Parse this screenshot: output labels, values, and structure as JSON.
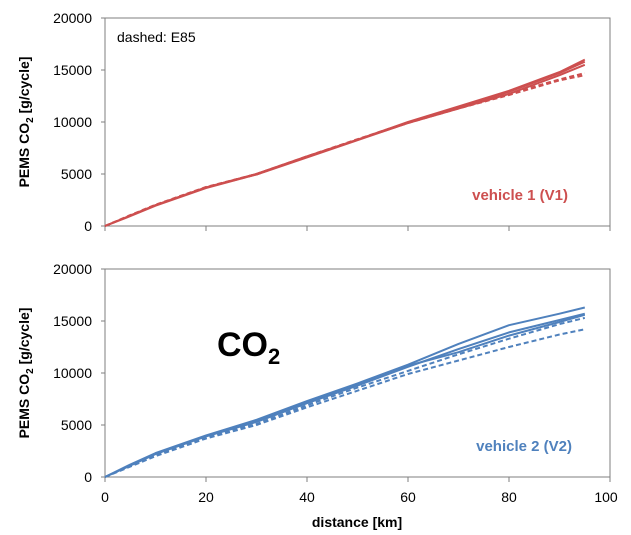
{
  "chart_data": [
    {
      "type": "line",
      "ylabel_main": "PEMS CO",
      "ylabel_sub": "2",
      "ylabel_rest": " [g/cycle]",
      "annotation": "dashed: E85",
      "vehicle_label": "vehicle 1 (V1)",
      "color": "#cd4f4f",
      "ylim": [
        0,
        20000
      ],
      "yticks": [
        "0",
        "5000",
        "10000",
        "15000",
        "20000"
      ],
      "xlim": [
        0,
        100
      ],
      "series": [
        {
          "style": "solid",
          "x": [
            0,
            5,
            10,
            20,
            30,
            40,
            50,
            60,
            70,
            80,
            90,
            95
          ],
          "y": [
            0,
            1000,
            2000,
            3700,
            5000,
            6700,
            8300,
            10000,
            11500,
            13000,
            14800,
            16000
          ]
        },
        {
          "style": "solid",
          "x": [
            0,
            5,
            10,
            20,
            30,
            40,
            50,
            60,
            70,
            80,
            90,
            95
          ],
          "y": [
            0,
            950,
            1950,
            3650,
            4950,
            6600,
            8250,
            9900,
            11300,
            12700,
            14500,
            15500
          ]
        },
        {
          "style": "solid",
          "x": [
            0,
            5,
            10,
            20,
            30,
            40,
            50,
            60,
            70,
            80,
            90,
            95
          ],
          "y": [
            0,
            1000,
            2000,
            3700,
            5000,
            6650,
            8300,
            9950,
            11400,
            12900,
            14700,
            15800
          ]
        },
        {
          "style": "dashed",
          "x": [
            0,
            5,
            10,
            20,
            30,
            40,
            50,
            60,
            70,
            80,
            90,
            95
          ],
          "y": [
            0,
            1050,
            2050,
            3750,
            5000,
            6700,
            8350,
            9950,
            11400,
            12700,
            14100,
            14700
          ]
        },
        {
          "style": "dashed",
          "x": [
            0,
            5,
            10,
            20,
            30,
            40,
            50,
            60,
            70,
            80,
            90,
            95
          ],
          "y": [
            0,
            1000,
            2000,
            3700,
            4950,
            6650,
            8300,
            9900,
            11300,
            12600,
            14000,
            14500
          ]
        }
      ]
    },
    {
      "type": "line",
      "ylabel_main": "PEMS CO",
      "ylabel_sub": "2",
      "ylabel_rest": " [g/cycle]",
      "big_label_main": "CO",
      "big_label_sub": "2",
      "vehicle_label": "vehicle 2 (V2)",
      "color": "#4f81bd",
      "ylim": [
        0,
        20000
      ],
      "yticks": [
        "0",
        "5000",
        "10000",
        "15000",
        "20000"
      ],
      "xlim": [
        0,
        100
      ],
      "xticks": [
        "0",
        "20",
        "40",
        "60",
        "80",
        "100"
      ],
      "xlabel": "distance [km]",
      "series": [
        {
          "style": "solid",
          "x": [
            0,
            5,
            10,
            20,
            30,
            40,
            50,
            60,
            70,
            80,
            90,
            95
          ],
          "y": [
            0,
            1200,
            2300,
            4000,
            5500,
            7300,
            9000,
            10800,
            12800,
            14600,
            15700,
            16300
          ]
        },
        {
          "style": "solid",
          "x": [
            0,
            5,
            10,
            20,
            30,
            40,
            50,
            60,
            70,
            80,
            90,
            95
          ],
          "y": [
            0,
            1100,
            2200,
            3900,
            5300,
            7100,
            8800,
            10600,
            12300,
            13900,
            15100,
            15700
          ]
        },
        {
          "style": "solid",
          "x": [
            0,
            5,
            10,
            20,
            30,
            40,
            50,
            60,
            70,
            80,
            90,
            95
          ],
          "y": [
            0,
            1150,
            2250,
            3950,
            5400,
            7200,
            8900,
            10700,
            12000,
            13600,
            14900,
            15600
          ]
        },
        {
          "style": "dashed",
          "x": [
            0,
            5,
            10,
            20,
            30,
            40,
            50,
            60,
            70,
            80,
            90,
            95
          ],
          "y": [
            0,
            1050,
            2100,
            3800,
            5100,
            6900,
            8600,
            10200,
            11800,
            13300,
            14700,
            15300
          ]
        },
        {
          "style": "dashed",
          "x": [
            0,
            5,
            10,
            20,
            30,
            40,
            50,
            60,
            70,
            80,
            90,
            95
          ],
          "y": [
            0,
            1000,
            2000,
            3700,
            5000,
            6700,
            8300,
            9900,
            11200,
            12500,
            13700,
            14200
          ]
        }
      ]
    }
  ]
}
